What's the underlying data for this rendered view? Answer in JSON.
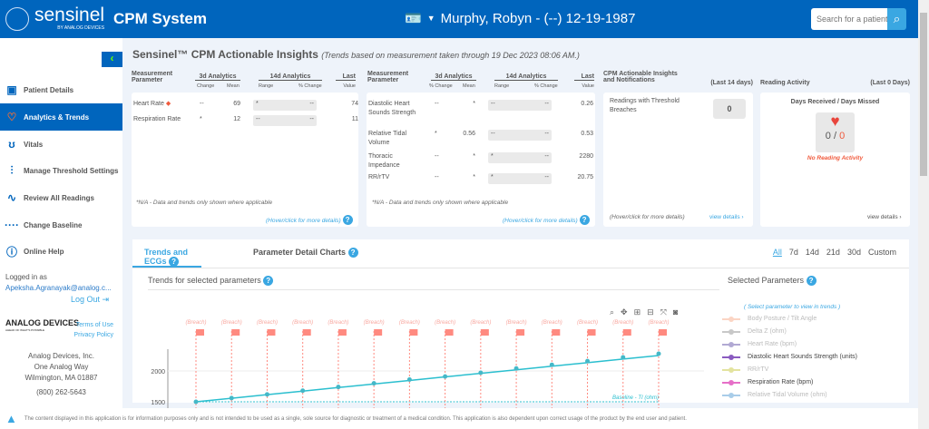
{
  "header": {
    "logo_text": "sensinel",
    "logo_sub": "BY ANALOG DEVICES",
    "app_title": "CPM System",
    "patient": "Murphy, Robyn - (--) 12-19-1987",
    "search_placeholder": "Search for a patient"
  },
  "sidebar": {
    "items": [
      {
        "label": "Patient Details",
        "icon": "id-card-icon"
      },
      {
        "label": "Analytics & Trends",
        "icon": "heart-icon",
        "active": true
      },
      {
        "label": "Vitals",
        "icon": "stethoscope-icon"
      },
      {
        "label": "Manage Threshold Settings",
        "icon": "sliders-icon"
      },
      {
        "label": "Review All Readings",
        "icon": "pulse-icon"
      },
      {
        "label": "Change Baseline",
        "icon": "dots-icon"
      },
      {
        "label": "Online Help",
        "icon": "help-icon"
      }
    ],
    "logged_in_label": "Logged in as",
    "email": "Apeksha.Agranayak@analog.c...",
    "logout": "Log Out",
    "adi_logo": "ANALOG DEVICES",
    "adi_tag": "AHEAD OF WHAT'S POSSIBLE",
    "terms": "Terms of Use",
    "privacy": "Privacy Policy",
    "address": [
      "Analog Devices, Inc.",
      "One Analog Way",
      "Wilmington, MA 01887",
      "(800) 262-5643"
    ]
  },
  "insights": {
    "title": "Sensinel™ CPM Actionable Insights",
    "subtitle": "(Trends based on measurement taken through 19 Dec 2023 08:06 AM.)",
    "headers": {
      "param": "Measurement Parameter",
      "a3": "3d Analytics",
      "a14": "14d Analytics",
      "last": "Last",
      "value": "Value",
      "change": "Change",
      "pchange": "% Change",
      "mean": "Mean",
      "range": "Range"
    },
    "left_rows": [
      {
        "name": "Heart Rate",
        "change": "--",
        "mean": "69",
        "range": "*",
        "pct": "--",
        "last": "74"
      },
      {
        "name": "Respiration Rate",
        "change": "*",
        "mean": "12",
        "range": "--",
        "pct": "--",
        "last": "11"
      }
    ],
    "mid_rows": [
      {
        "name": "Diastolic Heart Sounds Strength",
        "change": "--",
        "mean": "*",
        "range": "--",
        "pct": "--",
        "last": "0.26"
      },
      {
        "name": "Relative Tidal Volume",
        "change": "*",
        "mean": "0.56",
        "range": "--",
        "pct": "--",
        "last": "0.53"
      },
      {
        "name": "Thoracic Impedance",
        "change": "--",
        "mean": "*",
        "range": "*",
        "pct": "--",
        "last": "2280"
      },
      {
        "name": "RR/rTV",
        "change": "--",
        "mean": "*",
        "range": "*",
        "pct": "--",
        "last": "20.75"
      }
    ],
    "na_note": "*N/A - Data and trends only shown where applicable",
    "hover": "(Hover/click for more details)",
    "notif_title": "CPM Actionable Insights and Notifications",
    "notif_period": "(Last 14 days)",
    "breach_label": "Readings with Threshold Breaches",
    "breach_count": "0",
    "view_details": "view details ›",
    "activity_title": "Reading Activity",
    "activity_period": "(Last 0 Days)",
    "activity_sub": "Days Received / Days Missed",
    "received": "0",
    "missed": "0",
    "no_activity": "No Reading Activity"
  },
  "trends": {
    "tabs": [
      "Trends and ECGs",
      "Parameter Detail Charts"
    ],
    "ranges": [
      "All",
      "7d",
      "14d",
      "21d",
      "30d",
      "Custom"
    ],
    "trends_title": "Trends for selected parameters",
    "selected_title": "Selected Parameters",
    "select_hint": "( Select parameter to view in trends )",
    "params": [
      {
        "label": "Body Posture / Tilt Angle",
        "color": "#fbd5c4",
        "on": false
      },
      {
        "label": "Delta Z (ohm)",
        "color": "#c8c8c8",
        "on": false
      },
      {
        "label": "Heart Rate (bpm)",
        "color": "#b1a9d3",
        "on": false
      },
      {
        "label": "Diastolic Heart Sounds Strength (units)",
        "color": "#8a5bc0",
        "on": true
      },
      {
        "label": "RR/rTV",
        "color": "#e3e39f",
        "on": false
      },
      {
        "label": "Respiration Rate (bpm)",
        "color": "#e66fc8",
        "on": true
      },
      {
        "label": "Relative Tidal Volume (ohm)",
        "color": "#a9cde9",
        "on": false
      }
    ]
  },
  "chart_data": {
    "type": "line",
    "yticks": [
      "2000",
      "1500"
    ],
    "ylim": [
      1480,
      2400
    ],
    "baseline_label": "Baseline - TI (ohm)",
    "baseline": 1500,
    "flag_label": "(Breach)",
    "series": [
      {
        "values": [
          1500,
          1560,
          1620,
          1680,
          1740,
          1800,
          1860,
          1910,
          1970,
          2040,
          2100,
          2160,
          2220,
          2280
        ]
      }
    ],
    "line_color": "#2bbfcf",
    "flag_color": "#ff8a80"
  },
  "disclaimer": "The content displayed in this application is for information purposes only and is not intended to be used as a single, sole source for diagnostic or treatment of a medical condition. This application is also dependent upon correct usage of the product by the end user and patient."
}
